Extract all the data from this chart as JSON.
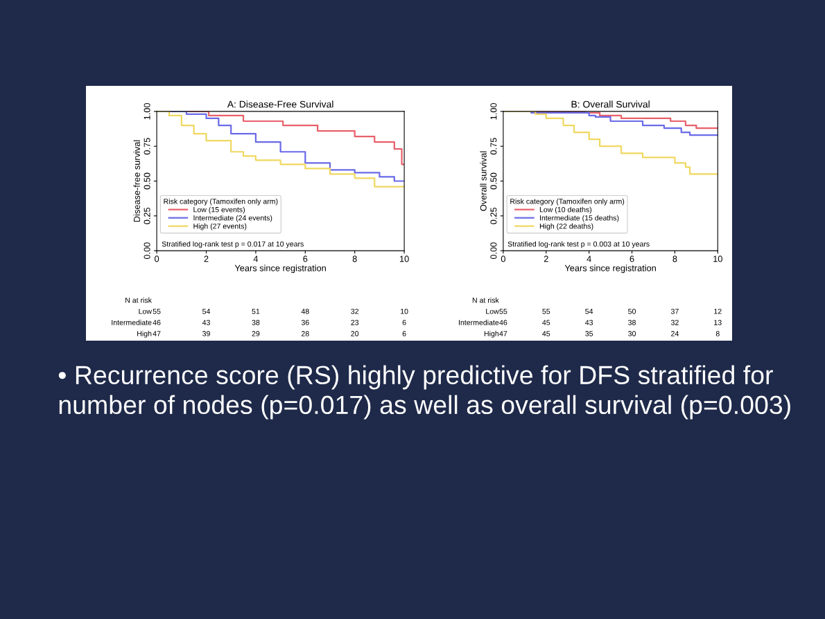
{
  "chart_data": [
    {
      "type": "step",
      "title": "A: Disease-Free Survival",
      "xlabel": "Years since registration",
      "ylabel": "Disease-free survival",
      "xlim": [
        0,
        10
      ],
      "ylim": [
        0,
        1
      ],
      "xticks": [
        0,
        2,
        4,
        6,
        8,
        10
      ],
      "yticks": [
        {
          "value": 0,
          "label": "0.00"
        },
        {
          "value": 0.25,
          "label": "0.25"
        },
        {
          "value": 0.5,
          "label": "0.50"
        },
        {
          "value": 0.75,
          "label": "0.75"
        },
        {
          "value": 1,
          "label": "1.00"
        }
      ],
      "legend_title": "Risk category (Tamoxifen only arm)",
      "legend": "bottom left",
      "grid": false,
      "series": [
        {
          "name": "Low (15 events)",
          "color": "#e8606a",
          "x": [
            0,
            2.1,
            3.5,
            5.1,
            6.5,
            8,
            8.8,
            9.6,
            9.9,
            10
          ],
          "values": [
            1,
            0.97,
            0.93,
            0.9,
            0.86,
            0.82,
            0.78,
            0.73,
            0.62,
            0.62
          ]
        },
        {
          "name": "Intermediate (24 events)",
          "color": "#6a6ae8",
          "x": [
            0,
            1.2,
            2,
            2.5,
            3,
            4,
            5,
            6,
            7,
            8,
            9,
            9.6,
            10
          ],
          "values": [
            1,
            0.98,
            0.95,
            0.9,
            0.84,
            0.78,
            0.71,
            0.63,
            0.58,
            0.56,
            0.53,
            0.5,
            0.5
          ]
        },
        {
          "name": "High (27 events)",
          "color": "#f0d860",
          "x": [
            0,
            0.5,
            1,
            1.5,
            2,
            3,
            3.5,
            4,
            5,
            6,
            7,
            8,
            8.8,
            10
          ],
          "values": [
            1,
            0.97,
            0.9,
            0.84,
            0.79,
            0.71,
            0.68,
            0.65,
            0.62,
            0.59,
            0.55,
            0.52,
            0.46,
            0.46
          ]
        }
      ],
      "annotations": [
        "Stratified log-rank test p = 0.017 at 10 years",
        "N at risk",
        "Low",
        "Intermediate",
        "High",
        "55",
        "54",
        "51",
        "48",
        "32",
        "10",
        "46",
        "43",
        "38",
        "36",
        "23",
        "6",
        "47",
        "39",
        "29",
        "28",
        "20",
        "6"
      ]
    },
    {
      "type": "step",
      "title": "B: Overall Survival",
      "xlabel": "Years since registration",
      "ylabel": "Overall survival",
      "xlim": [
        0,
        10
      ],
      "ylim": [
        0,
        1
      ],
      "xticks": [
        0,
        2,
        4,
        6,
        8,
        10
      ],
      "yticks": [
        {
          "value": 0,
          "label": "0.00"
        },
        {
          "value": 0.25,
          "label": "0.25"
        },
        {
          "value": 0.5,
          "label": "0.50"
        },
        {
          "value": 0.75,
          "label": "0.75"
        },
        {
          "value": 1,
          "label": "1.00"
        }
      ],
      "legend_title": "Risk category (Tamoxifen only arm)",
      "legend": "bottom left",
      "grid": false,
      "series": [
        {
          "name": "Low (10 deaths)",
          "color": "#e8606a",
          "x": [
            0,
            3.8,
            4.5,
            5.5,
            7.8,
            8.5,
            9,
            10
          ],
          "values": [
            1,
            0.99,
            0.97,
            0.95,
            0.93,
            0.9,
            0.88,
            0.88
          ]
        },
        {
          "name": "Intermediate (15 deaths)",
          "color": "#6a6ae8",
          "x": [
            0,
            1.3,
            4,
            4.3,
            5,
            6.5,
            7.5,
            8.3,
            8.7,
            10
          ],
          "values": [
            1,
            0.99,
            0.97,
            0.96,
            0.93,
            0.9,
            0.88,
            0.85,
            0.83,
            0.83
          ]
        },
        {
          "name": "High (22 deaths)",
          "color": "#f0d860",
          "x": [
            0,
            1.5,
            2,
            2.8,
            3.3,
            4,
            4.5,
            5.5,
            6.5,
            8,
            8.5,
            8.7,
            10
          ],
          "values": [
            1,
            0.98,
            0.95,
            0.9,
            0.85,
            0.8,
            0.75,
            0.7,
            0.67,
            0.63,
            0.6,
            0.55,
            0.55
          ]
        }
      ],
      "annotations": [
        "Stratified log-rank test p = 0.003 at 10 years",
        "N at risk",
        "Low",
        "Intermediate",
        "High",
        "55",
        "55",
        "54",
        "50",
        "37",
        "12",
        "46",
        "45",
        "43",
        "38",
        "32",
        "13",
        "47",
        "45",
        "35",
        "30",
        "24",
        "8",
        "• Recurrence score (RS) highly predictive for DFS stratified for number of nodes (p=0.017) as well as overall survival (p=0.003)"
      ]
    }
  ]
}
